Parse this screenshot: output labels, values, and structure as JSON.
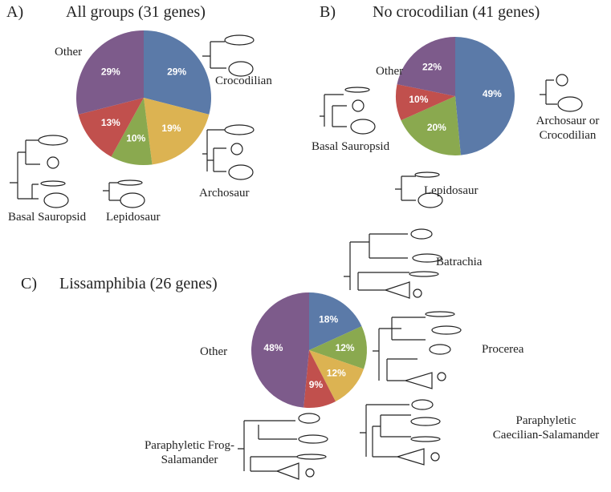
{
  "chart_data": [
    {
      "type": "pie",
      "panel": "A)",
      "title": "All groups (31 genes)",
      "categories": [
        "Crocodilian",
        "Archosaur",
        "Lepidosaur",
        "Basal Sauropsid",
        "Other"
      ],
      "values": [
        29,
        19,
        10,
        13,
        29
      ],
      "value_labels": [
        "29%",
        "19%",
        "10%",
        "13%",
        "29%"
      ],
      "colors": [
        "#5b7aa8",
        "#dcb352",
        "#8aa94f",
        "#c1504d",
        "#7d5b8b"
      ]
    },
    {
      "type": "pie",
      "panel": "B)",
      "title": "No crocodilian (41 genes)",
      "categories": [
        "Archosaur or Crocodilian",
        "Lepidosaur",
        "Basal Sauropsid",
        "Other"
      ],
      "values": [
        49,
        20,
        10,
        22
      ],
      "value_labels": [
        "49%",
        "20%",
        "10%",
        "22%"
      ],
      "colors": [
        "#5b7aa8",
        "#8aa94f",
        "#c1504d",
        "#7d5b8b"
      ]
    },
    {
      "type": "pie",
      "panel": "C)",
      "title": "Lissamphibia (26 genes)",
      "categories": [
        "Batrachia",
        "Procerea",
        "Paraphyletic Caecilian-Salamander",
        "Paraphyletic Frog-Salamander",
        "Other"
      ],
      "values": [
        18,
        12,
        12,
        9,
        48
      ],
      "value_labels": [
        "18%",
        "12%",
        "12%",
        "9%",
        "48%"
      ],
      "colors": [
        "#5b7aa8",
        "#8aa94f",
        "#dcb352",
        "#c1504d",
        "#7d5b8b"
      ]
    }
  ]
}
